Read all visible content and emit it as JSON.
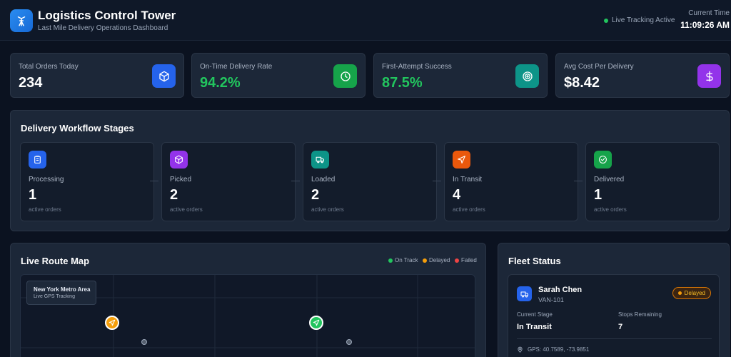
{
  "header": {
    "title": "Logistics Control Tower",
    "subtitle": "Last Mile Delivery Operations Dashboard",
    "live_status": "Live Tracking Active",
    "time_label": "Current Time",
    "time_value": "11:09:26 AM"
  },
  "kpis": [
    {
      "label": "Total Orders Today",
      "value": "234",
      "icon": "package-icon",
      "value_color": "#ffffff",
      "icon_color": "#2563eb"
    },
    {
      "label": "On-Time Delivery Rate",
      "value": "94.2%",
      "icon": "clock-icon",
      "value_color": "#22c55e",
      "icon_color": "#16a34a"
    },
    {
      "label": "First-Attempt Success",
      "value": "87.5%",
      "icon": "target-icon",
      "value_color": "#22c55e",
      "icon_color": "#0d9488"
    },
    {
      "label": "Avg Cost Per Delivery",
      "value": "$8.42",
      "icon": "dollar-icon",
      "value_color": "#ffffff",
      "icon_color": "#9333ea"
    }
  ],
  "workflow": {
    "title": "Delivery Workflow Stages",
    "stages": [
      {
        "name": "Processing",
        "count": "1",
        "sub": "active orders",
        "icon": "clipboard-icon",
        "color": "#2563eb"
      },
      {
        "name": "Picked",
        "count": "2",
        "sub": "active orders",
        "icon": "box-icon",
        "color": "#9333ea"
      },
      {
        "name": "Loaded",
        "count": "2",
        "sub": "active orders",
        "icon": "truck-icon",
        "color": "#0d9488"
      },
      {
        "name": "In Transit",
        "count": "4",
        "sub": "active orders",
        "icon": "navigation-icon",
        "color": "#ea580c"
      },
      {
        "name": "Delivered",
        "count": "1",
        "sub": "active orders",
        "icon": "check-circle-icon",
        "color": "#16a34a"
      }
    ]
  },
  "map": {
    "title": "Live Route Map",
    "legend": [
      {
        "label": "On Track",
        "color": "#22c55e"
      },
      {
        "label": "Delayed",
        "color": "#f59e0b"
      },
      {
        "label": "Failed",
        "color": "#ef4444"
      }
    ],
    "area_title": "New York Metro Area",
    "area_sub": "Live GPS Tracking"
  },
  "fleet": {
    "title": "Fleet Status",
    "driver": {
      "name": "Sarah Chen",
      "vehicle": "VAN-101",
      "status": "Delayed",
      "stage_label": "Current Stage",
      "stage_value": "In Transit",
      "stops_label": "Stops Remaining",
      "stops_value": "7",
      "gps": "GPS: 40.7589, -73.9851"
    }
  }
}
